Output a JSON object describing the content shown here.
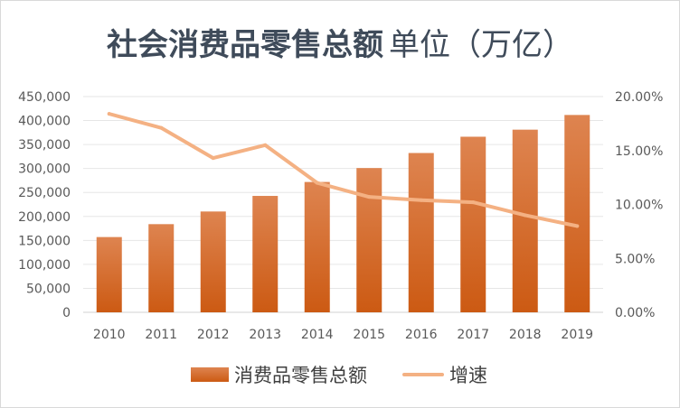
{
  "chart_title": {
    "main": "社会消费品零售总额",
    "unit": "单位（万亿）"
  },
  "chart_data": {
    "type": "bar+line",
    "title": "社会消费品零售总额 单位（万亿）",
    "categories": [
      "2010",
      "2011",
      "2012",
      "2013",
      "2014",
      "2015",
      "2016",
      "2017",
      "2018",
      "2019"
    ],
    "series": [
      {
        "name": "消费品零售总额",
        "type": "bar",
        "axis": "left",
        "values": [
          156998,
          183919,
          210307,
          242843,
          271896,
          300931,
          332316,
          366262,
          380987,
          411649
        ],
        "color": "#d4691f"
      },
      {
        "name": "增速",
        "type": "line",
        "axis": "right",
        "values": [
          0.184,
          0.171,
          0.143,
          0.155,
          0.12,
          0.107,
          0.104,
          0.102,
          0.09,
          0.08
        ],
        "color": "#f4b183"
      }
    ],
    "y_left": {
      "min": 0,
      "max": 450000,
      "ticks": [
        "0",
        "50,000",
        "100,000",
        "150,000",
        "200,000",
        "250,000",
        "300,000",
        "350,000",
        "400,000",
        "450,000"
      ]
    },
    "y_right": {
      "min": 0,
      "max": 0.2,
      "ticks": [
        "0.00%",
        "5.00%",
        "10.00%",
        "15.00%",
        "20.00%"
      ]
    },
    "grid": true,
    "legend_position": "bottom"
  }
}
